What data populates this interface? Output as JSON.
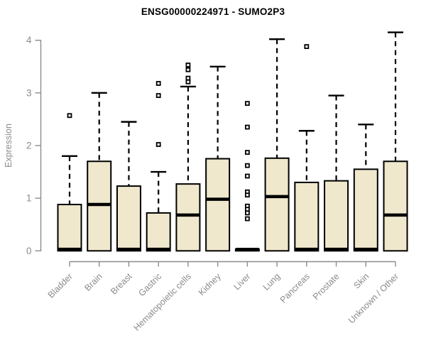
{
  "chart_data": {
    "type": "boxplot",
    "title": "ENSG00000224971 - SUMO2P3",
    "ylabel": "Expression",
    "xlabel": "",
    "ylim": [
      0,
      4
    ],
    "yticks": [
      0,
      1,
      2,
      3,
      4
    ],
    "grid": false,
    "legend": "none",
    "categories": [
      "Bladder",
      "Brain",
      "Breast",
      "Gastric",
      "Hematopoietic cells",
      "Kidney",
      "Liver",
      "Lung",
      "Pancreas",
      "Prostate",
      "Skin",
      "Unknown / Other"
    ],
    "series": [
      {
        "category": "Bladder",
        "low": 0,
        "q1": 0,
        "median": 0.03,
        "q3": 0.88,
        "high": 1.8,
        "outliers": [
          2.57
        ]
      },
      {
        "category": "Brain",
        "low": 0,
        "q1": 0,
        "median": 0.88,
        "q3": 1.7,
        "high": 3.0,
        "outliers": []
      },
      {
        "category": "Breast",
        "low": 0,
        "q1": 0,
        "median": 0.03,
        "q3": 1.23,
        "high": 2.45,
        "outliers": []
      },
      {
        "category": "Gastric",
        "low": 0,
        "q1": 0,
        "median": 0.03,
        "q3": 0.72,
        "high": 1.5,
        "outliers": [
          3.18,
          2.95,
          2.02
        ]
      },
      {
        "category": "Hematopoietic cells",
        "low": 0,
        "q1": 0,
        "median": 0.68,
        "q3": 1.27,
        "high": 3.12,
        "outliers": [
          3.53,
          3.44,
          3.28,
          3.21
        ]
      },
      {
        "category": "Kidney",
        "low": 0,
        "q1": 0,
        "median": 0.98,
        "q3": 1.75,
        "high": 3.5,
        "outliers": []
      },
      {
        "category": "Liver",
        "low": 0,
        "q1": 0,
        "median": 0.01,
        "q3": 0.03,
        "high": 0.03,
        "outliers": [
          2.8,
          2.35,
          1.87,
          1.62,
          1.42,
          1.12,
          1.06,
          0.85,
          0.79,
          0.72,
          0.61
        ]
      },
      {
        "category": "Lung",
        "low": 0,
        "q1": 0,
        "median": 1.03,
        "q3": 1.76,
        "high": 4.02,
        "outliers": []
      },
      {
        "category": "Pancreas",
        "low": 0,
        "q1": 0,
        "median": 0.03,
        "q3": 1.3,
        "high": 2.28,
        "outliers": [
          3.88
        ]
      },
      {
        "category": "Prostate",
        "low": 0,
        "q1": 0,
        "median": 0.03,
        "q3": 1.33,
        "high": 2.95,
        "outliers": []
      },
      {
        "category": "Skin",
        "low": 0,
        "q1": 0,
        "median": 0.03,
        "q3": 1.55,
        "high": 2.4,
        "outliers": []
      },
      {
        "category": "Unknown / Other",
        "low": 0,
        "q1": 0,
        "median": 0.68,
        "q3": 1.7,
        "high": 4.15,
        "outliers": []
      }
    ],
    "colors": {
      "box_fill": "#EFE8CD",
      "box_stroke": "#000000",
      "median": "#000000",
      "whisker": "#000000",
      "outlier_stroke": "#000000",
      "outlier_fill": "#FFFFFF",
      "axis": "#8B8B8B",
      "tick_label": "#8B8B8B",
      "title": "#000000",
      "background": "#FFFFFF"
    }
  }
}
